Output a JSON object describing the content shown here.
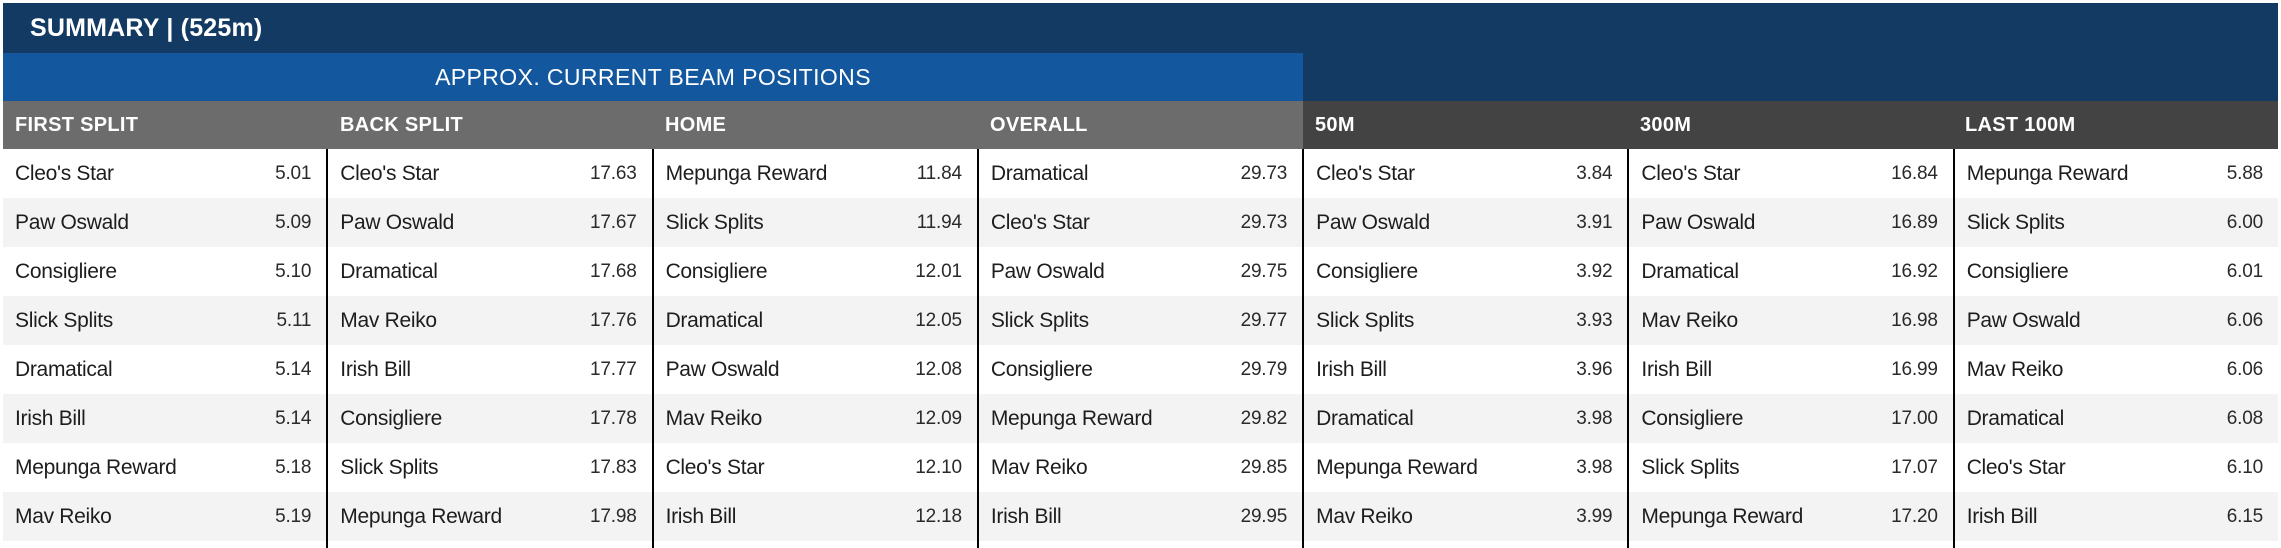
{
  "title": "SUMMARY | (525m)",
  "banner": "APPROX. CURRENT BEAM POSITIONS",
  "colors": {
    "navy": "#123a63",
    "blue": "#13579f",
    "header_gray_light": "#6c6c6c",
    "header_gray_dark": "#434343",
    "row_alternate": "#f3f3f3",
    "column_divider": "#000000"
  },
  "columns": [
    {
      "label": "FIRST SPLIT",
      "section": "beam",
      "rows": [
        {
          "name": "Cleo's Star",
          "value": "5.01"
        },
        {
          "name": "Paw Oswald",
          "value": "5.09"
        },
        {
          "name": "Consigliere",
          "value": "5.10"
        },
        {
          "name": "Slick Splits",
          "value": "5.11"
        },
        {
          "name": "Dramatical",
          "value": "5.14"
        },
        {
          "name": "Irish Bill",
          "value": "5.14"
        },
        {
          "name": "Mepunga Reward",
          "value": "5.18"
        },
        {
          "name": "Mav Reiko",
          "value": "5.19"
        }
      ]
    },
    {
      "label": "BACK SPLIT",
      "section": "beam",
      "rows": [
        {
          "name": "Cleo's Star",
          "value": "17.63"
        },
        {
          "name": "Paw Oswald",
          "value": "17.67"
        },
        {
          "name": "Dramatical",
          "value": "17.68"
        },
        {
          "name": "Mav Reiko",
          "value": "17.76"
        },
        {
          "name": "Irish Bill",
          "value": "17.77"
        },
        {
          "name": "Consigliere",
          "value": "17.78"
        },
        {
          "name": "Slick Splits",
          "value": "17.83"
        },
        {
          "name": "Mepunga Reward",
          "value": "17.98"
        }
      ]
    },
    {
      "label": "HOME",
      "section": "beam",
      "rows": [
        {
          "name": "Mepunga Reward",
          "value": "11.84"
        },
        {
          "name": "Slick Splits",
          "value": "11.94"
        },
        {
          "name": "Consigliere",
          "value": "12.01"
        },
        {
          "name": "Dramatical",
          "value": "12.05"
        },
        {
          "name": "Paw Oswald",
          "value": "12.08"
        },
        {
          "name": "Mav Reiko",
          "value": "12.09"
        },
        {
          "name": "Cleo's Star",
          "value": "12.10"
        },
        {
          "name": "Irish Bill",
          "value": "12.18"
        }
      ]
    },
    {
      "label": "OVERALL",
      "section": "beam",
      "rows": [
        {
          "name": "Dramatical",
          "value": "29.73"
        },
        {
          "name": "Cleo's Star",
          "value": "29.73"
        },
        {
          "name": "Paw Oswald",
          "value": "29.75"
        },
        {
          "name": "Slick Splits",
          "value": "29.77"
        },
        {
          "name": "Consigliere",
          "value": "29.79"
        },
        {
          "name": "Mepunga Reward",
          "value": "29.82"
        },
        {
          "name": "Mav Reiko",
          "value": "29.85"
        },
        {
          "name": "Irish Bill",
          "value": "29.95"
        }
      ]
    },
    {
      "label": "50M",
      "section": "plain",
      "rows": [
        {
          "name": "Cleo's Star",
          "value": "3.84"
        },
        {
          "name": "Paw Oswald",
          "value": "3.91"
        },
        {
          "name": "Consigliere",
          "value": "3.92"
        },
        {
          "name": "Slick Splits",
          "value": "3.93"
        },
        {
          "name": "Irish Bill",
          "value": "3.96"
        },
        {
          "name": "Dramatical",
          "value": "3.98"
        },
        {
          "name": "Mepunga Reward",
          "value": "3.98"
        },
        {
          "name": "Mav Reiko",
          "value": "3.99"
        }
      ]
    },
    {
      "label": "300M",
      "section": "plain",
      "rows": [
        {
          "name": "Cleo's Star",
          "value": "16.84"
        },
        {
          "name": "Paw Oswald",
          "value": "16.89"
        },
        {
          "name": "Dramatical",
          "value": "16.92"
        },
        {
          "name": "Mav Reiko",
          "value": "16.98"
        },
        {
          "name": "Irish Bill",
          "value": "16.99"
        },
        {
          "name": "Consigliere",
          "value": "17.00"
        },
        {
          "name": "Slick Splits",
          "value": "17.07"
        },
        {
          "name": "Mepunga Reward",
          "value": "17.20"
        }
      ]
    },
    {
      "label": "LAST 100M",
      "section": "plain",
      "rows": [
        {
          "name": "Mepunga Reward",
          "value": "5.88"
        },
        {
          "name": "Slick Splits",
          "value": "6.00"
        },
        {
          "name": "Consigliere",
          "value": "6.01"
        },
        {
          "name": "Paw Oswald",
          "value": "6.06"
        },
        {
          "name": "Mav Reiko",
          "value": "6.06"
        },
        {
          "name": "Dramatical",
          "value": "6.08"
        },
        {
          "name": "Cleo's Star",
          "value": "6.10"
        },
        {
          "name": "Irish Bill",
          "value": "6.15"
        }
      ]
    }
  ]
}
